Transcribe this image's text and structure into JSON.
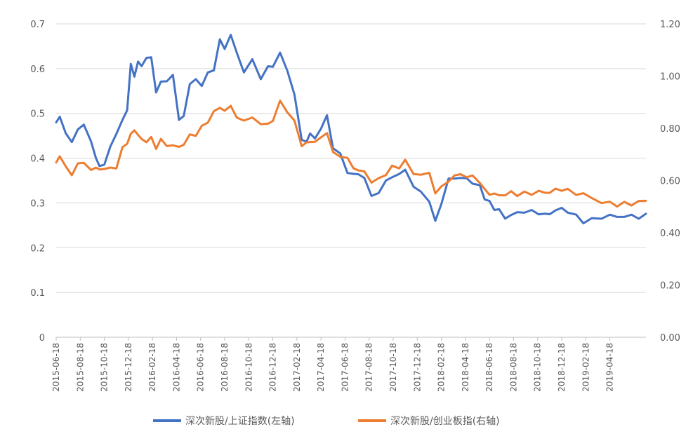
{
  "chart_data": {
    "type": "line",
    "title": "",
    "xlabel": "",
    "ylabel": "",
    "grid": true,
    "legend_position": "bottom",
    "x_tick_labels": [
      "2015-06-18",
      "2015-08-18",
      "2015-10-18",
      "2015-12-18",
      "2016-02-18",
      "2016-04-18",
      "2016-06-18",
      "2016-08-18",
      "2016-10-18",
      "2016-12-18",
      "2017-02-18",
      "2017-04-18",
      "2017-06-18",
      "2017-08-18",
      "2017-10-18",
      "2017-12-18",
      "2018-02-18",
      "2018-04-18",
      "2018-06-18",
      "2018-08-18",
      "2018-10-18",
      "2018-12-18",
      "2019-02-18",
      "2019-04-18"
    ],
    "x_range_months": [
      0,
      49
    ],
    "y_left": {
      "range": [
        0,
        0.7
      ],
      "ticks": [
        "0",
        "0.1",
        "0.2",
        "0.3",
        "0.4",
        "0.5",
        "0.6",
        "0.7"
      ]
    },
    "y_right": {
      "range": [
        0,
        1.2
      ],
      "ticks": [
        "0.00",
        "0.20",
        "0.40",
        "0.60",
        "0.80",
        "1.00",
        "1.20"
      ]
    },
    "series": [
      {
        "name": "深次新股/上证指数(左轴)",
        "axis": "left",
        "color": "#4472C4",
        "x": [
          0,
          0.3,
          0.8,
          1.3,
          1.8,
          2.3,
          2.9,
          3.3,
          3.6,
          4.0,
          4.5,
          5.0,
          5.5,
          5.9,
          6.2,
          6.5,
          6.8,
          7.1,
          7.5,
          7.9,
          8.3,
          8.7,
          9.2,
          9.7,
          10.2,
          10.6,
          11.1,
          11.6,
          12.1,
          12.6,
          13.1,
          13.6,
          14.0,
          14.5,
          15.0,
          15.6,
          16.3,
          17.0,
          17.6,
          18.0,
          18.6,
          19.2,
          19.8,
          20.4,
          20.8,
          21.1,
          21.5,
          22.0,
          22.5,
          23.0,
          23.6,
          24.2,
          24.7,
          25.1,
          25.6,
          26.2,
          26.8,
          27.4,
          27.9,
          28.5,
          29.0,
          29.7,
          30.3,
          31.0,
          31.5,
          32.0,
          32.6,
          33.1,
          33.6,
          34.1,
          34.6,
          35.2,
          35.6,
          36.0,
          36.4,
          36.8,
          37.3,
          37.8,
          38.3,
          38.9,
          39.5,
          40.1,
          40.6,
          41.0,
          41.5,
          42.0,
          42.5,
          43.2,
          43.8,
          44.5,
          45.3,
          46.0,
          46.6,
          47.2,
          47.8,
          48.4,
          49.0
        ],
        "y": [
          0.48,
          0.49,
          0.46,
          0.43,
          0.47,
          0.47,
          0.44,
          0.4,
          0.38,
          0.39,
          0.42,
          0.46,
          0.48,
          0.51,
          0.61,
          0.58,
          0.62,
          0.6,
          0.63,
          0.62,
          0.55,
          0.57,
          0.57,
          0.59,
          0.48,
          0.5,
          0.56,
          0.58,
          0.56,
          0.59,
          0.6,
          0.66,
          0.65,
          0.67,
          0.64,
          0.59,
          0.62,
          0.58,
          0.6,
          0.61,
          0.63,
          0.6,
          0.54,
          0.44,
          0.44,
          0.45,
          0.45,
          0.46,
          0.5,
          0.42,
          0.41,
          0.37,
          0.36,
          0.37,
          0.35,
          0.32,
          0.32,
          0.35,
          0.36,
          0.36,
          0.38,
          0.33,
          0.33,
          0.3,
          0.26,
          0.3,
          0.35,
          0.36,
          0.35,
          0.36,
          0.34,
          0.34,
          0.31,
          0.3,
          0.29,
          0.28,
          0.27,
          0.27,
          0.28,
          0.28,
          0.28,
          0.28,
          0.27,
          0.28,
          0.28,
          0.29,
          0.28,
          0.27,
          0.26,
          0.26,
          0.27,
          0.27,
          0.27,
          0.27,
          0.27,
          0.27,
          0.27
        ]
      },
      {
        "name": "深次新股/创业板指(右轴)",
        "axis": "right",
        "color": "#ED7D31",
        "x": [
          0,
          0.3,
          0.8,
          1.3,
          1.8,
          2.3,
          2.9,
          3.3,
          3.6,
          4.0,
          4.5,
          5.0,
          5.5,
          5.9,
          6.2,
          6.5,
          6.8,
          7.1,
          7.5,
          7.9,
          8.3,
          8.7,
          9.2,
          9.7,
          10.2,
          10.6,
          11.1,
          11.6,
          12.1,
          12.6,
          13.1,
          13.6,
          14.0,
          14.5,
          15.0,
          15.6,
          16.3,
          17.0,
          17.6,
          18.0,
          18.6,
          19.2,
          19.8,
          20.4,
          20.8,
          21.1,
          21.5,
          22.0,
          22.5,
          23.0,
          23.6,
          24.2,
          24.7,
          25.1,
          25.6,
          26.2,
          26.8,
          27.4,
          27.9,
          28.5,
          29.0,
          29.7,
          30.3,
          31.0,
          31.5,
          32.0,
          32.6,
          33.1,
          33.6,
          34.1,
          34.6,
          35.2,
          35.6,
          36.0,
          36.4,
          36.8,
          37.3,
          37.8,
          38.3,
          38.9,
          39.5,
          40.1,
          40.6,
          41.0,
          41.5,
          42.0,
          42.5,
          43.2,
          43.8,
          44.5,
          45.3,
          46.0,
          46.6,
          47.2,
          47.8,
          48.4,
          49.0
        ],
        "y": [
          0.66,
          0.7,
          0.65,
          0.62,
          0.67,
          0.66,
          0.65,
          0.64,
          0.65,
          0.64,
          0.65,
          0.65,
          0.72,
          0.75,
          0.77,
          0.8,
          0.77,
          0.76,
          0.75,
          0.76,
          0.73,
          0.75,
          0.74,
          0.73,
          0.73,
          0.74,
          0.77,
          0.78,
          0.8,
          0.83,
          0.86,
          0.88,
          0.87,
          0.88,
          0.85,
          0.82,
          0.85,
          0.81,
          0.82,
          0.83,
          0.9,
          0.87,
          0.82,
          0.74,
          0.74,
          0.75,
          0.75,
          0.76,
          0.79,
          0.7,
          0.7,
          0.68,
          0.65,
          0.64,
          0.63,
          0.6,
          0.6,
          0.63,
          0.65,
          0.65,
          0.68,
          0.62,
          0.63,
          0.62,
          0.56,
          0.57,
          0.6,
          0.62,
          0.62,
          0.62,
          0.61,
          0.6,
          0.56,
          0.55,
          0.55,
          0.54,
          0.55,
          0.55,
          0.55,
          0.55,
          0.55,
          0.56,
          0.55,
          0.56,
          0.56,
          0.57,
          0.56,
          0.55,
          0.55,
          0.53,
          0.52,
          0.51,
          0.51,
          0.51,
          0.51,
          0.52,
          0.52
        ]
      }
    ]
  }
}
